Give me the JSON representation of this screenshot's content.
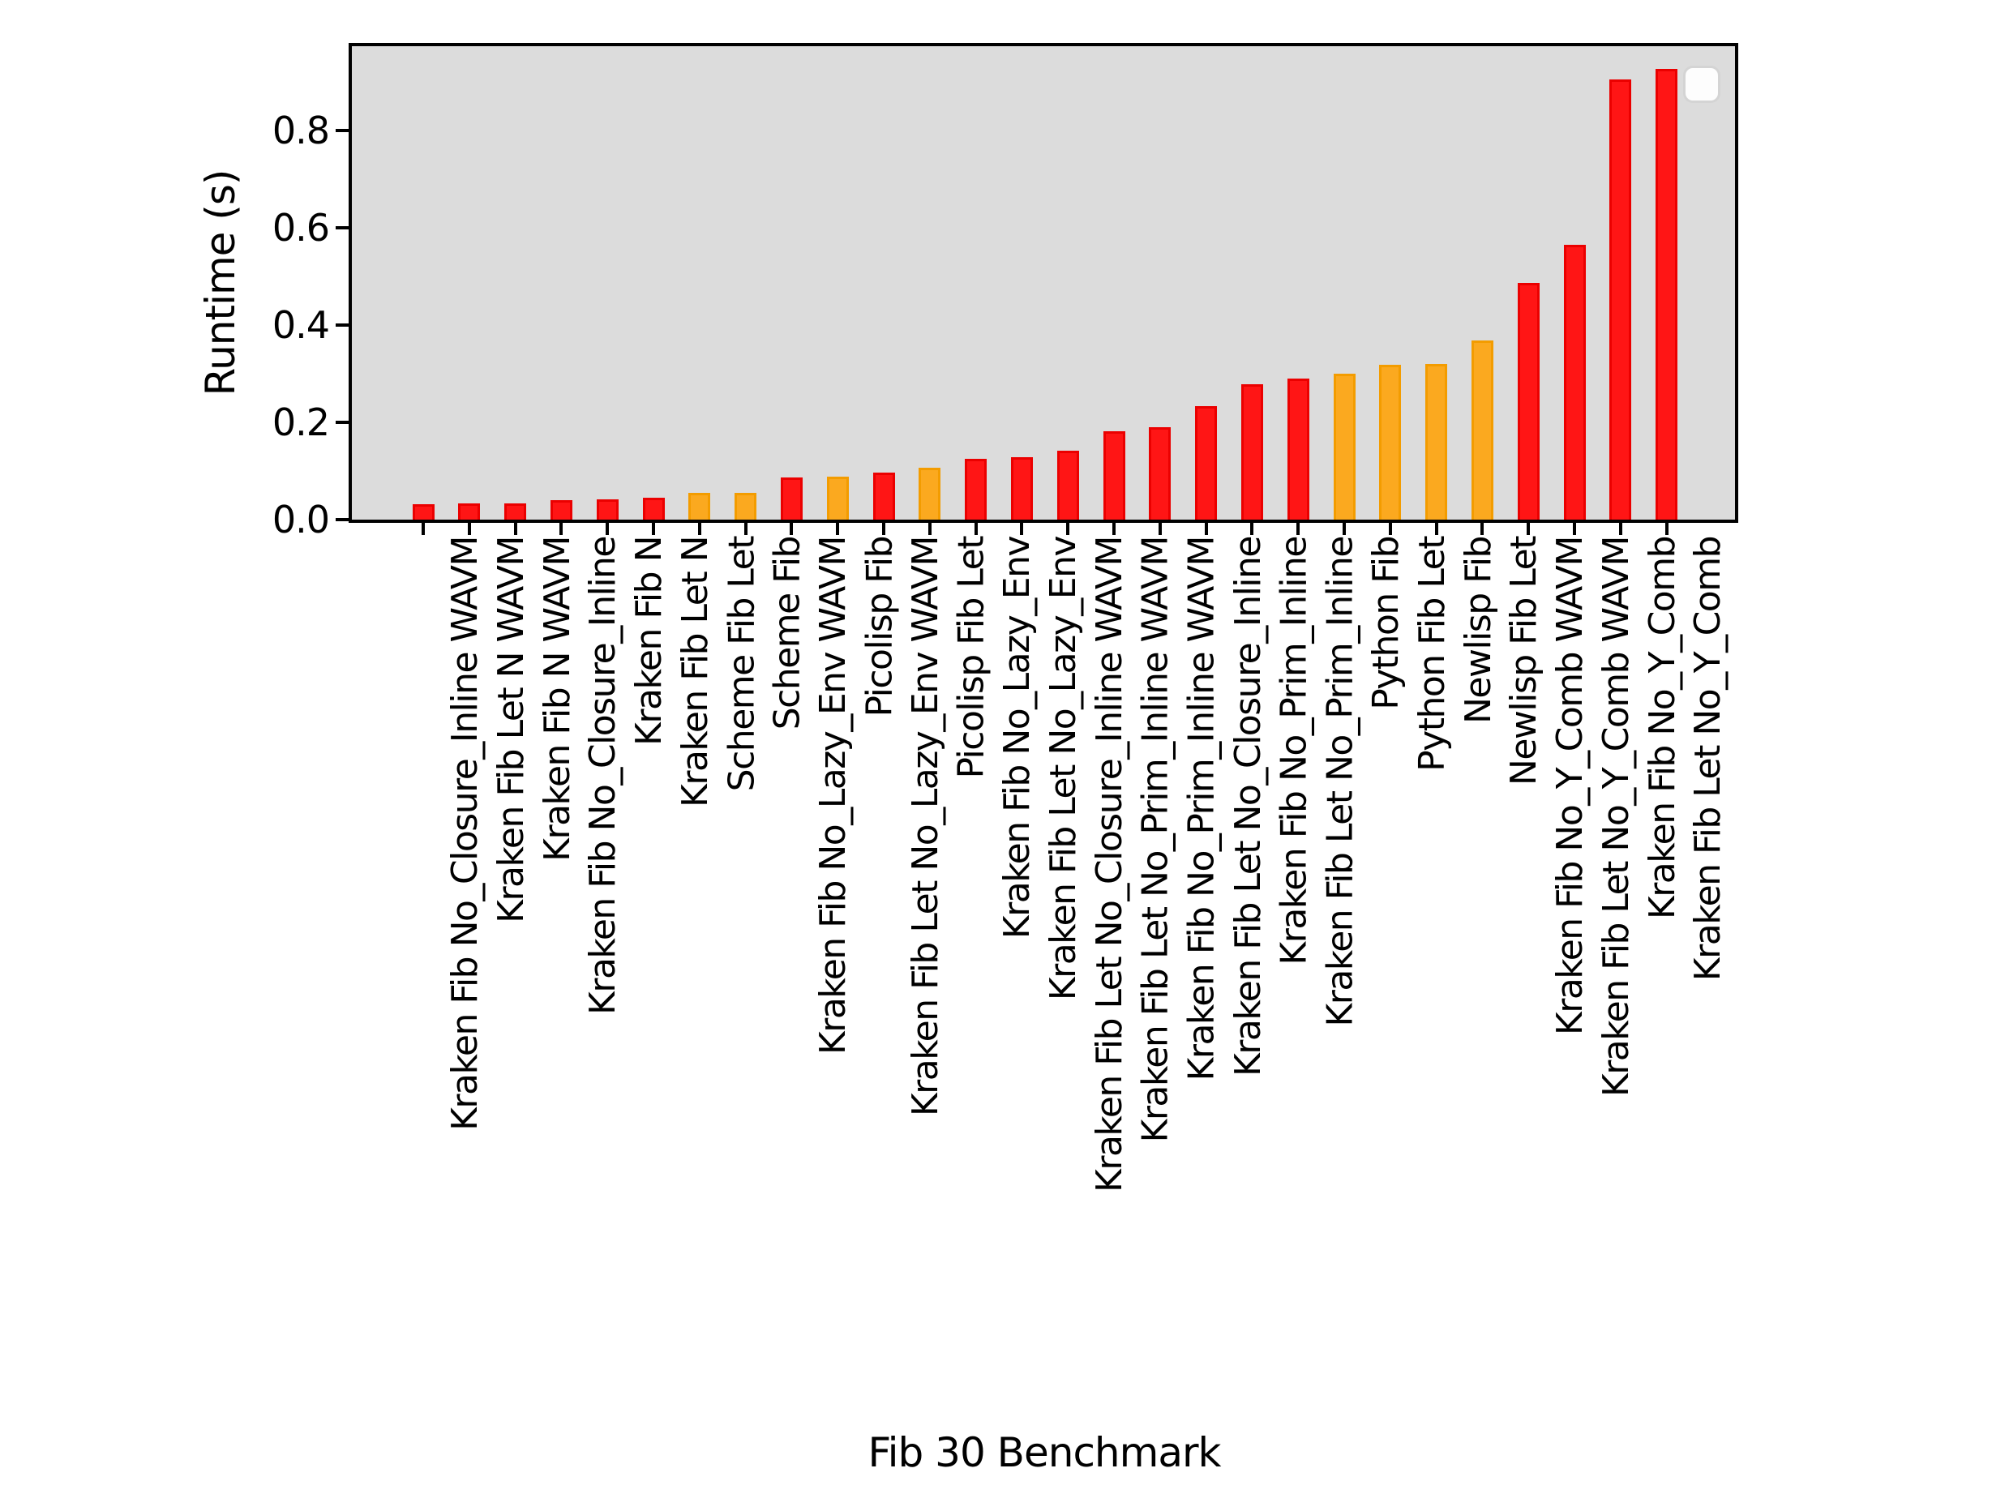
{
  "figure": {
    "background": "#ffffff",
    "plot_background": "#dcdcdc",
    "spine_color": "#000000"
  },
  "chart_data": {
    "type": "bar",
    "title": "",
    "xlabel": "Fib 30 Benchmark",
    "ylabel": "Runtime (s)",
    "ylim": [
      0,
      0.974
    ],
    "yticks": [
      "0.0",
      "0.2",
      "0.4",
      "0.6",
      "0.8"
    ],
    "ytick_values": [
      0.0,
      0.2,
      0.4,
      0.6,
      0.8
    ],
    "grid": false,
    "legend": {
      "visible": true,
      "position": "upper-right",
      "entries": []
    },
    "bar_colors": {
      "red": {
        "fill": "#ff1515",
        "edge": "#eb0000"
      },
      "orange": {
        "fill": "#fba91f",
        "edge": "#f39c00"
      }
    },
    "categories": [
      "Kraken Fib No_Closure_Inline WAVM",
      "Kraken Fib Let N WAVM",
      "Kraken Fib N WAVM",
      "Kraken Fib No_Closure_Inline",
      "Kraken Fib N",
      "Kraken Fib Let N",
      "Scheme Fib Let",
      "Scheme Fib",
      "Kraken Fib No_Lazy_Env WAVM",
      "Picolisp Fib",
      "Kraken Fib Let No_Lazy_Env WAVM",
      "Picolisp Fib Let",
      "Kraken Fib No_Lazy_Env",
      "Kraken Fib Let No_Lazy_Env",
      "Kraken Fib Let No_Closure_Inline WAVM",
      "Kraken Fib Let No_Prim_Inline WAVM",
      "Kraken Fib No_Prim_Inline WAVM",
      "Kraken Fib Let No_Closure_Inline",
      "Kraken Fib No_Prim_Inline",
      "Kraken Fib Let No_Prim_Inline",
      "Python Fib",
      "Python Fib Let",
      "Newlisp Fib",
      "Newlisp Fib Let",
      "Kraken Fib No_Y_Comb WAVM",
      "Kraken Fib Let No_Y_Comb WAVM",
      "Kraken Fib No_Y_Comb",
      "Kraken Fib Let No_Y_Comb"
    ],
    "values": [
      0.031,
      0.034,
      0.033,
      0.04,
      0.042,
      0.045,
      0.055,
      0.055,
      0.086,
      0.089,
      0.096,
      0.107,
      0.125,
      0.128,
      0.141,
      0.182,
      0.19,
      0.234,
      0.278,
      0.29,
      0.3,
      0.318,
      0.32,
      0.369,
      0.487,
      0.565,
      0.905,
      0.928
    ],
    "colors": [
      "red",
      "red",
      "red",
      "red",
      "red",
      "red",
      "orange",
      "orange",
      "red",
      "orange",
      "red",
      "orange",
      "red",
      "red",
      "red",
      "red",
      "red",
      "red",
      "red",
      "red",
      "orange",
      "orange",
      "orange",
      "orange",
      "red",
      "red",
      "red",
      "red"
    ]
  }
}
